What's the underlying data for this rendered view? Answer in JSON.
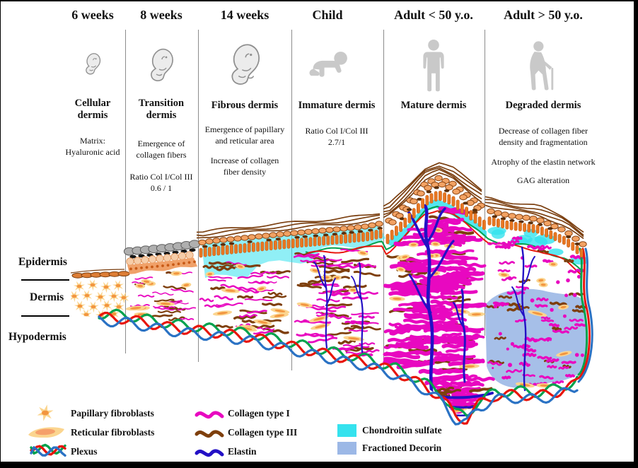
{
  "columns": [
    {
      "header": "6 weeks",
      "stage": "Cellular dermis",
      "descriptions": [
        [
          "Matrix:",
          "Hyaluronic acid"
        ]
      ]
    },
    {
      "header": "8 weeks",
      "stage": "Transition dermis",
      "descriptions": [
        [
          "Emergence of",
          "collagen fibers"
        ],
        [
          "Ratio Col I/Col III",
          "0.6 / 1"
        ]
      ]
    },
    {
      "header": "14 weeks",
      "stage": "Fibrous dermis",
      "descriptions": [
        [
          "Emergence of papillary",
          "and reticular area"
        ],
        [
          "Increase of collagen",
          "fiber density"
        ]
      ]
    },
    {
      "header": "Child",
      "stage": "Immature dermis",
      "descriptions": [
        [
          "Ratio Col I/Col III",
          "2.7/1"
        ]
      ]
    },
    {
      "header": "Adult < 50 y.o.",
      "stage": "Mature dermis",
      "descriptions": []
    },
    {
      "header": "Adult > 50 y.o.",
      "stage": "Degraded dermis",
      "descriptions": [
        [
          "Decrease of collagen fiber",
          "density and fragmentation"
        ],
        [
          "Atrophy of the elastin network"
        ],
        [
          "GAG alteration"
        ]
      ]
    }
  ],
  "layers": [
    "Epidermis",
    "Dermis",
    "Hypodermis"
  ],
  "legend": {
    "items": [
      {
        "label": "Papillary fibroblasts"
      },
      {
        "label": "Reticular fibroblasts"
      },
      {
        "label": "Plexus"
      },
      {
        "label": "Collagen type I"
      },
      {
        "label": "Collagen type III"
      },
      {
        "label": "Elastin"
      },
      {
        "label": "Chondroitin sulfate"
      },
      {
        "label": "Fractioned Decorin"
      }
    ]
  },
  "colors": {
    "collagen1": "#E808C0",
    "collagen3": "#7E3F0C",
    "elastin": "#2310C5",
    "chondroitin": "#35E2EE",
    "decorin": "#9CB8E6",
    "plexus_green": "#00A24D",
    "plexus_red": "#E8150C",
    "plexus_blue": "#2A72C4",
    "fibroblast_body": "#FBD58F",
    "fibroblast_core": "#F2953F",
    "epidermis_orange": "#E87722",
    "epidermis_line": "#7B3F10",
    "icon_gray": "#C9C9C9"
  }
}
